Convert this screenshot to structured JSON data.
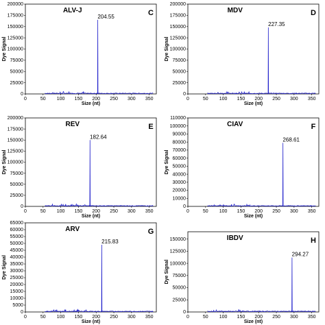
{
  "chart_data": [
    {
      "type": "line",
      "panel_label": "C",
      "title": "ALV-J",
      "xlabel": "Size (nt)",
      "ylabel": "Dye Signal",
      "xlim": [
        0,
        370
      ],
      "xticks": [
        "0",
        "50",
        "100",
        "150",
        "200",
        "250",
        "300",
        "350"
      ],
      "ylim": [
        0,
        200000
      ],
      "yticks": [
        "0",
        "25000",
        "50000",
        "75000",
        "100000",
        "125000",
        "150000",
        "175000",
        "200000"
      ],
      "series_color": "#2222cc",
      "baseline": 1500,
      "peaks": [
        {
          "x": 204.55,
          "y": 165000,
          "label": "204.55"
        }
      ]
    },
    {
      "type": "line",
      "panel_label": "D",
      "title": "MDV",
      "xlabel": "Size (nt)",
      "ylabel": "Dye Signal",
      "xlim": [
        0,
        370
      ],
      "xticks": [
        "0",
        "50",
        "100",
        "150",
        "200",
        "250",
        "300",
        "350"
      ],
      "ylim": [
        0,
        200000
      ],
      "yticks": [
        "0",
        "25000",
        "50000",
        "75000",
        "100000",
        "125000",
        "150000",
        "175000",
        "200000"
      ],
      "series_color": "#2222cc",
      "baseline": 1500,
      "peaks": [
        {
          "x": 227.35,
          "y": 148000,
          "label": "227.35"
        }
      ]
    },
    {
      "type": "line",
      "panel_label": "E",
      "title": "REV",
      "xlabel": "Size (nt)",
      "ylabel": "Dye Signal",
      "xlim": [
        0,
        370
      ],
      "xticks": [
        "0",
        "50",
        "100",
        "150",
        "200",
        "250",
        "300",
        "350"
      ],
      "ylim": [
        0,
        200000
      ],
      "yticks": [
        "0",
        "25000",
        "50000",
        "75000",
        "100000",
        "125000",
        "150000",
        "175000",
        "200000"
      ],
      "series_color": "#2222cc",
      "baseline": 1500,
      "peaks": [
        {
          "x": 182.64,
          "y": 150000,
          "label": "182.64"
        }
      ]
    },
    {
      "type": "line",
      "panel_label": "F",
      "title": "CIAV",
      "xlabel": "Size (nt)",
      "ylabel": "Dye Signal",
      "xlim": [
        0,
        370
      ],
      "xticks": [
        "0",
        "50",
        "100",
        "150",
        "200",
        "250",
        "300",
        "350"
      ],
      "ylim": [
        0,
        110000
      ],
      "yticks": [
        "0",
        "10000",
        "20000",
        "30000",
        "40000",
        "50000",
        "60000",
        "70000",
        "80000",
        "90000",
        "100000",
        "110000"
      ],
      "series_color": "#2222cc",
      "baseline": 800,
      "peaks": [
        {
          "x": 268.61,
          "y": 79000,
          "label": "268.61"
        }
      ]
    },
    {
      "type": "line",
      "panel_label": "G",
      "title": "ARV",
      "xlabel": "Size (nt)",
      "ylabel": "Dye Signal",
      "xlim": [
        0,
        370
      ],
      "xticks": [
        "0",
        "50",
        "100",
        "150",
        "200",
        "250",
        "300",
        "350"
      ],
      "ylim": [
        0,
        65000
      ],
      "yticks": [
        "0",
        "5000",
        "10000",
        "15000",
        "20000",
        "25000",
        "30000",
        "35000",
        "40000",
        "45000",
        "50000",
        "55000",
        "60000",
        "65000"
      ],
      "series_color": "#2222cc",
      "baseline": 500,
      "peaks": [
        {
          "x": 215.83,
          "y": 49000,
          "label": "215.83"
        }
      ]
    },
    {
      "type": "line",
      "panel_label": "H",
      "title": "IBDV",
      "xlabel": "Size (nt)",
      "ylabel": "Dye Signal",
      "xlim": [
        0,
        370
      ],
      "xticks": [
        "0",
        "50",
        "100",
        "150",
        "200",
        "250",
        "300",
        "350"
      ],
      "ylim": [
        0,
        165000
      ],
      "yticks": [
        "0",
        "25000",
        "50000",
        "75000",
        "100000",
        "125000",
        "150000"
      ],
      "series_color": "#2222cc",
      "baseline": 1500,
      "peaks": [
        {
          "x": 294.27,
          "y": 112000,
          "label": "294.27"
        }
      ]
    }
  ]
}
